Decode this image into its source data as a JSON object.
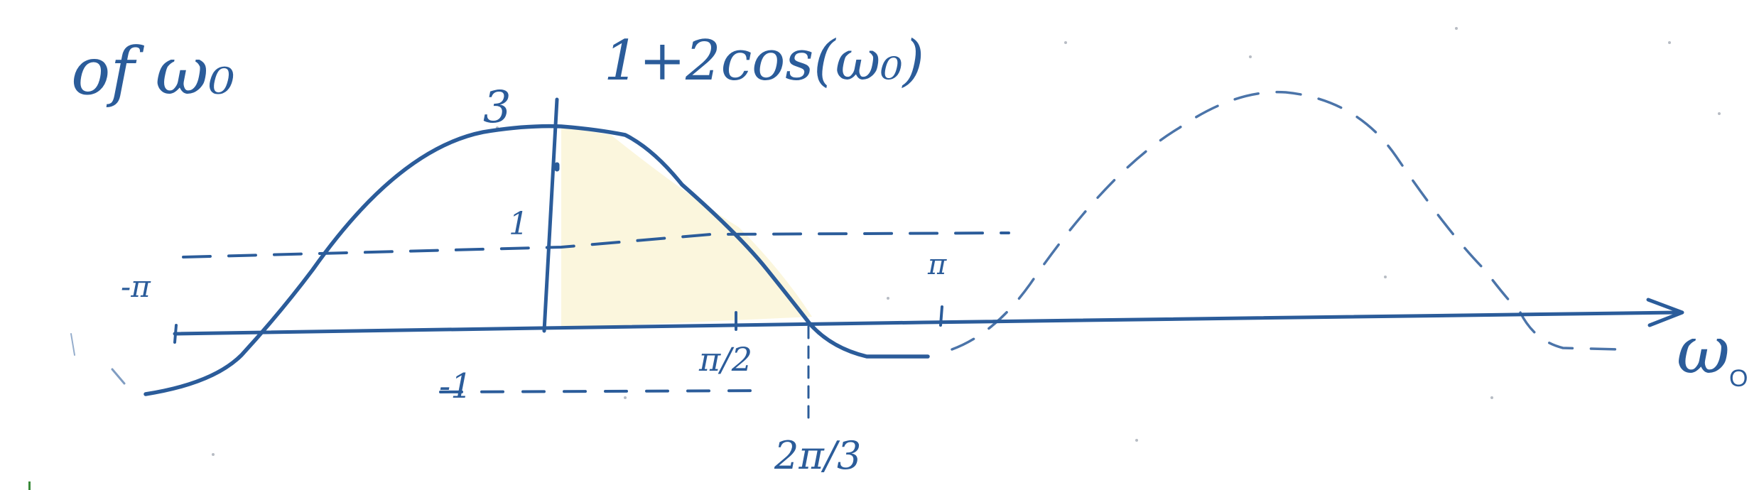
{
  "heading": {
    "text": "of  ω₀"
  },
  "function_label": {
    "text": "1+2cos(ω₀)"
  },
  "axis_label": {
    "text": "ω"
  },
  "axis_label_subscript": {
    "text": "O"
  },
  "peak_label": {
    "text": "3"
  },
  "level_one_label": {
    "text": "1"
  },
  "level_minus_one_label": {
    "text": "-1"
  },
  "minus_pi_label": {
    "text": "-π"
  },
  "pi_label": {
    "text": "π"
  },
  "half_pi_label": {
    "text": "π/2"
  },
  "two_pi_third_label": {
    "text": "2π/3"
  },
  "colors": {
    "ink": "#2b5c9a",
    "shade": "#fbf6dd"
  }
}
